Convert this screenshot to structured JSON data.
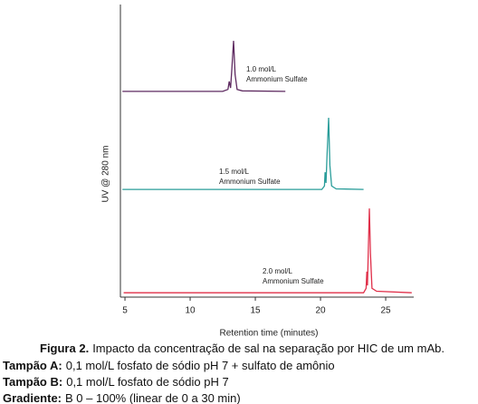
{
  "chart_data": {
    "type": "line",
    "x_label": "Retention time (minutes)",
    "y_label": "UV @ 280 nm",
    "xlim": [
      4.65,
      27.15
    ],
    "xticks": [
      5,
      10,
      15,
      20,
      25
    ],
    "ylim": [
      0,
      100
    ],
    "series": [
      {
        "label": [
          "1.0 mol/L",
          "Ammonium  Sulfate"
        ],
        "color": "#5e2a60",
        "x": [
          4.8,
          12.5,
          12.9,
          13.0,
          13.1,
          13.2,
          13.33,
          13.45,
          13.6,
          14.0,
          17.3
        ],
        "values": [
          70.3,
          70.3,
          71,
          73.7,
          71.5,
          78,
          87.6,
          76,
          71,
          70.5,
          70.3
        ]
      },
      {
        "label": [
          "1.5 mol/L",
          "Ammonium  Sulfate"
        ],
        "color": "#2a9d9a",
        "x": [
          4.8,
          20.1,
          20.3,
          20.35,
          20.42,
          20.5,
          20.62,
          20.72,
          20.85,
          21.2,
          23.3
        ],
        "values": [
          36.8,
          36.8,
          38,
          42.7,
          39,
          48,
          61.3,
          45,
          38,
          37,
          36.8
        ]
      },
      {
        "label": [
          "2.0 mol/L",
          "Ammonium  Sulfate"
        ],
        "color": "#e0304a",
        "x": [
          4.9,
          23.3,
          23.5,
          23.55,
          23.6,
          23.68,
          23.75,
          23.83,
          23.95,
          24.3,
          27.0
        ],
        "values": [
          1.5,
          1.5,
          3,
          8.7,
          4,
          18,
          30.3,
          15,
          3,
          2,
          1.5
        ]
      }
    ]
  },
  "caption": {
    "label": "Figura 2.",
    "text": "Impacto da concentração de sal na separação por HIC de um mAb."
  },
  "notes": [
    {
      "label": "Tampão A:",
      "text": "0,1 mol/L fosfato de sódio pH 7 + sulfato de amônio"
    },
    {
      "label": "Tampão B:",
      "text": "0,1 mol/L fosfato de sódio pH 7"
    },
    {
      "label": "Gradiente:",
      "text": "B 0 – 100% (linear de 0 a 30 min)"
    }
  ]
}
